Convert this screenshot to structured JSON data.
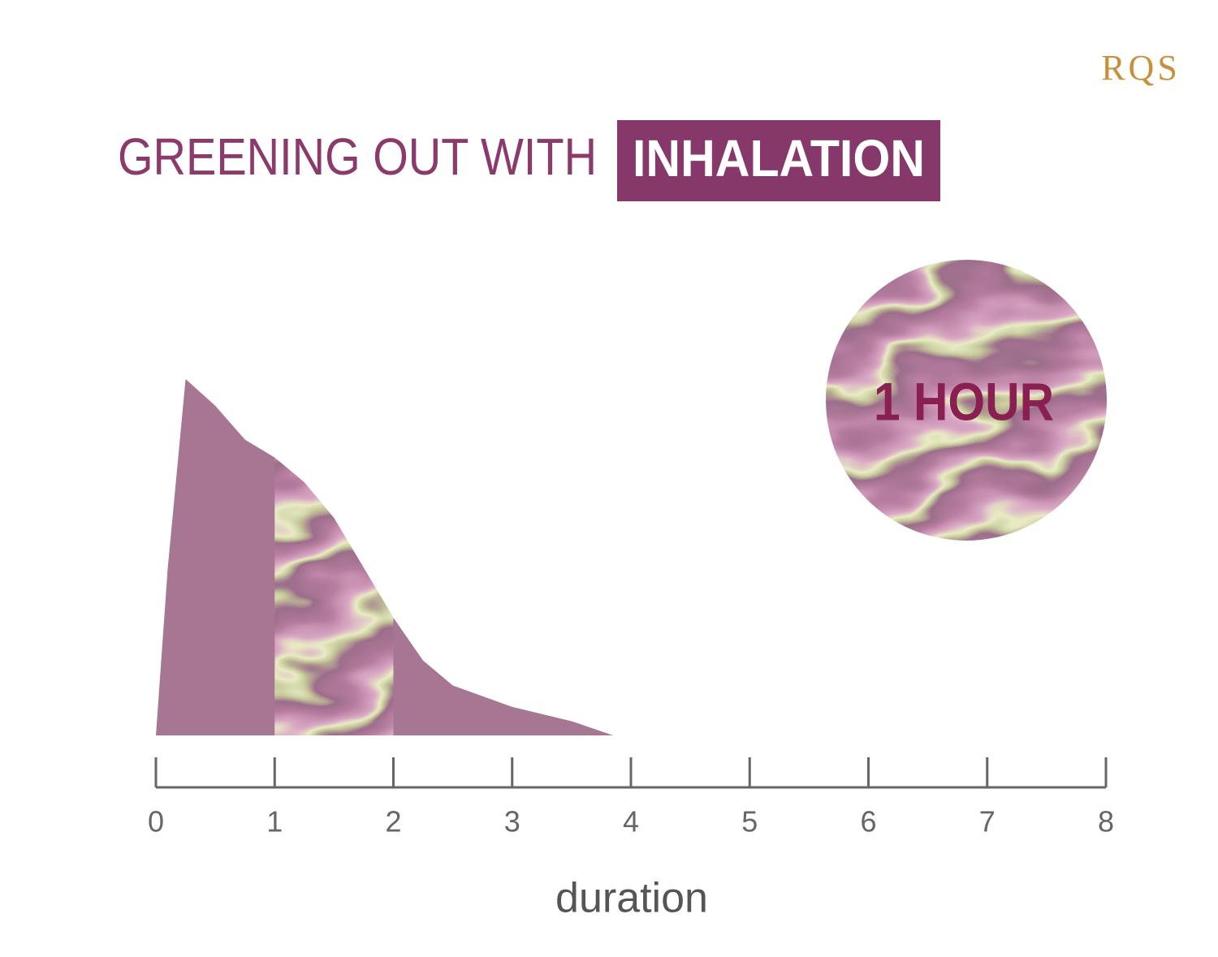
{
  "chart_data": {
    "type": "area",
    "logo": "RQS",
    "title": "GREENING OUT WITH",
    "title_highlight": "INHALATION",
    "annotation": "1 HOUR",
    "xlabel": "duration",
    "x": [
      0,
      0.1,
      0.25,
      0.5,
      0.75,
      1,
      1.25,
      1.5,
      1.75,
      2,
      2.25,
      2.5,
      3,
      3.5,
      3.85
    ],
    "series": [
      {
        "color": "#a77693",
        "values": [
          0,
          47,
          100,
          92.5,
          83,
          78,
          71,
          61,
          47,
          33,
          21,
          14,
          8,
          4,
          0
        ]
      }
    ],
    "highlight": [
      1,
      2
    ],
    "xlim": [
      0,
      8
    ],
    "xticks": [
      0,
      1,
      2,
      3,
      4,
      5,
      6,
      7,
      8
    ],
    "ylim": [
      0,
      100
    ]
  }
}
